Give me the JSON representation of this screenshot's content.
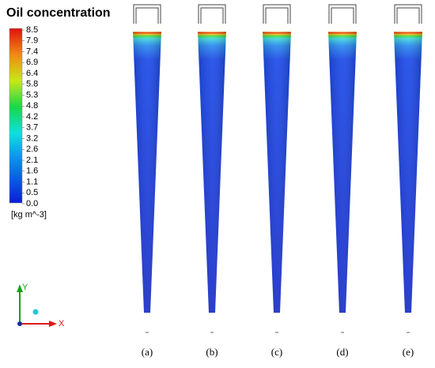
{
  "title": "Oil concentration",
  "colorbar": {
    "labels": [
      "8.5",
      "7.9",
      "7.4",
      "6.9",
      "6.4",
      "5.8",
      "5.3",
      "4.8",
      "4.2",
      "3.7",
      "3.2",
      "2.6",
      "2.1",
      "1.6",
      "1.1",
      "0.5",
      "0.0"
    ],
    "unit": "[kg m^-3]"
  },
  "axes": {
    "y": "Y",
    "x": "X"
  },
  "panels": [
    "(a)",
    "(b)",
    "(c)",
    "(d)",
    "(e)"
  ]
}
